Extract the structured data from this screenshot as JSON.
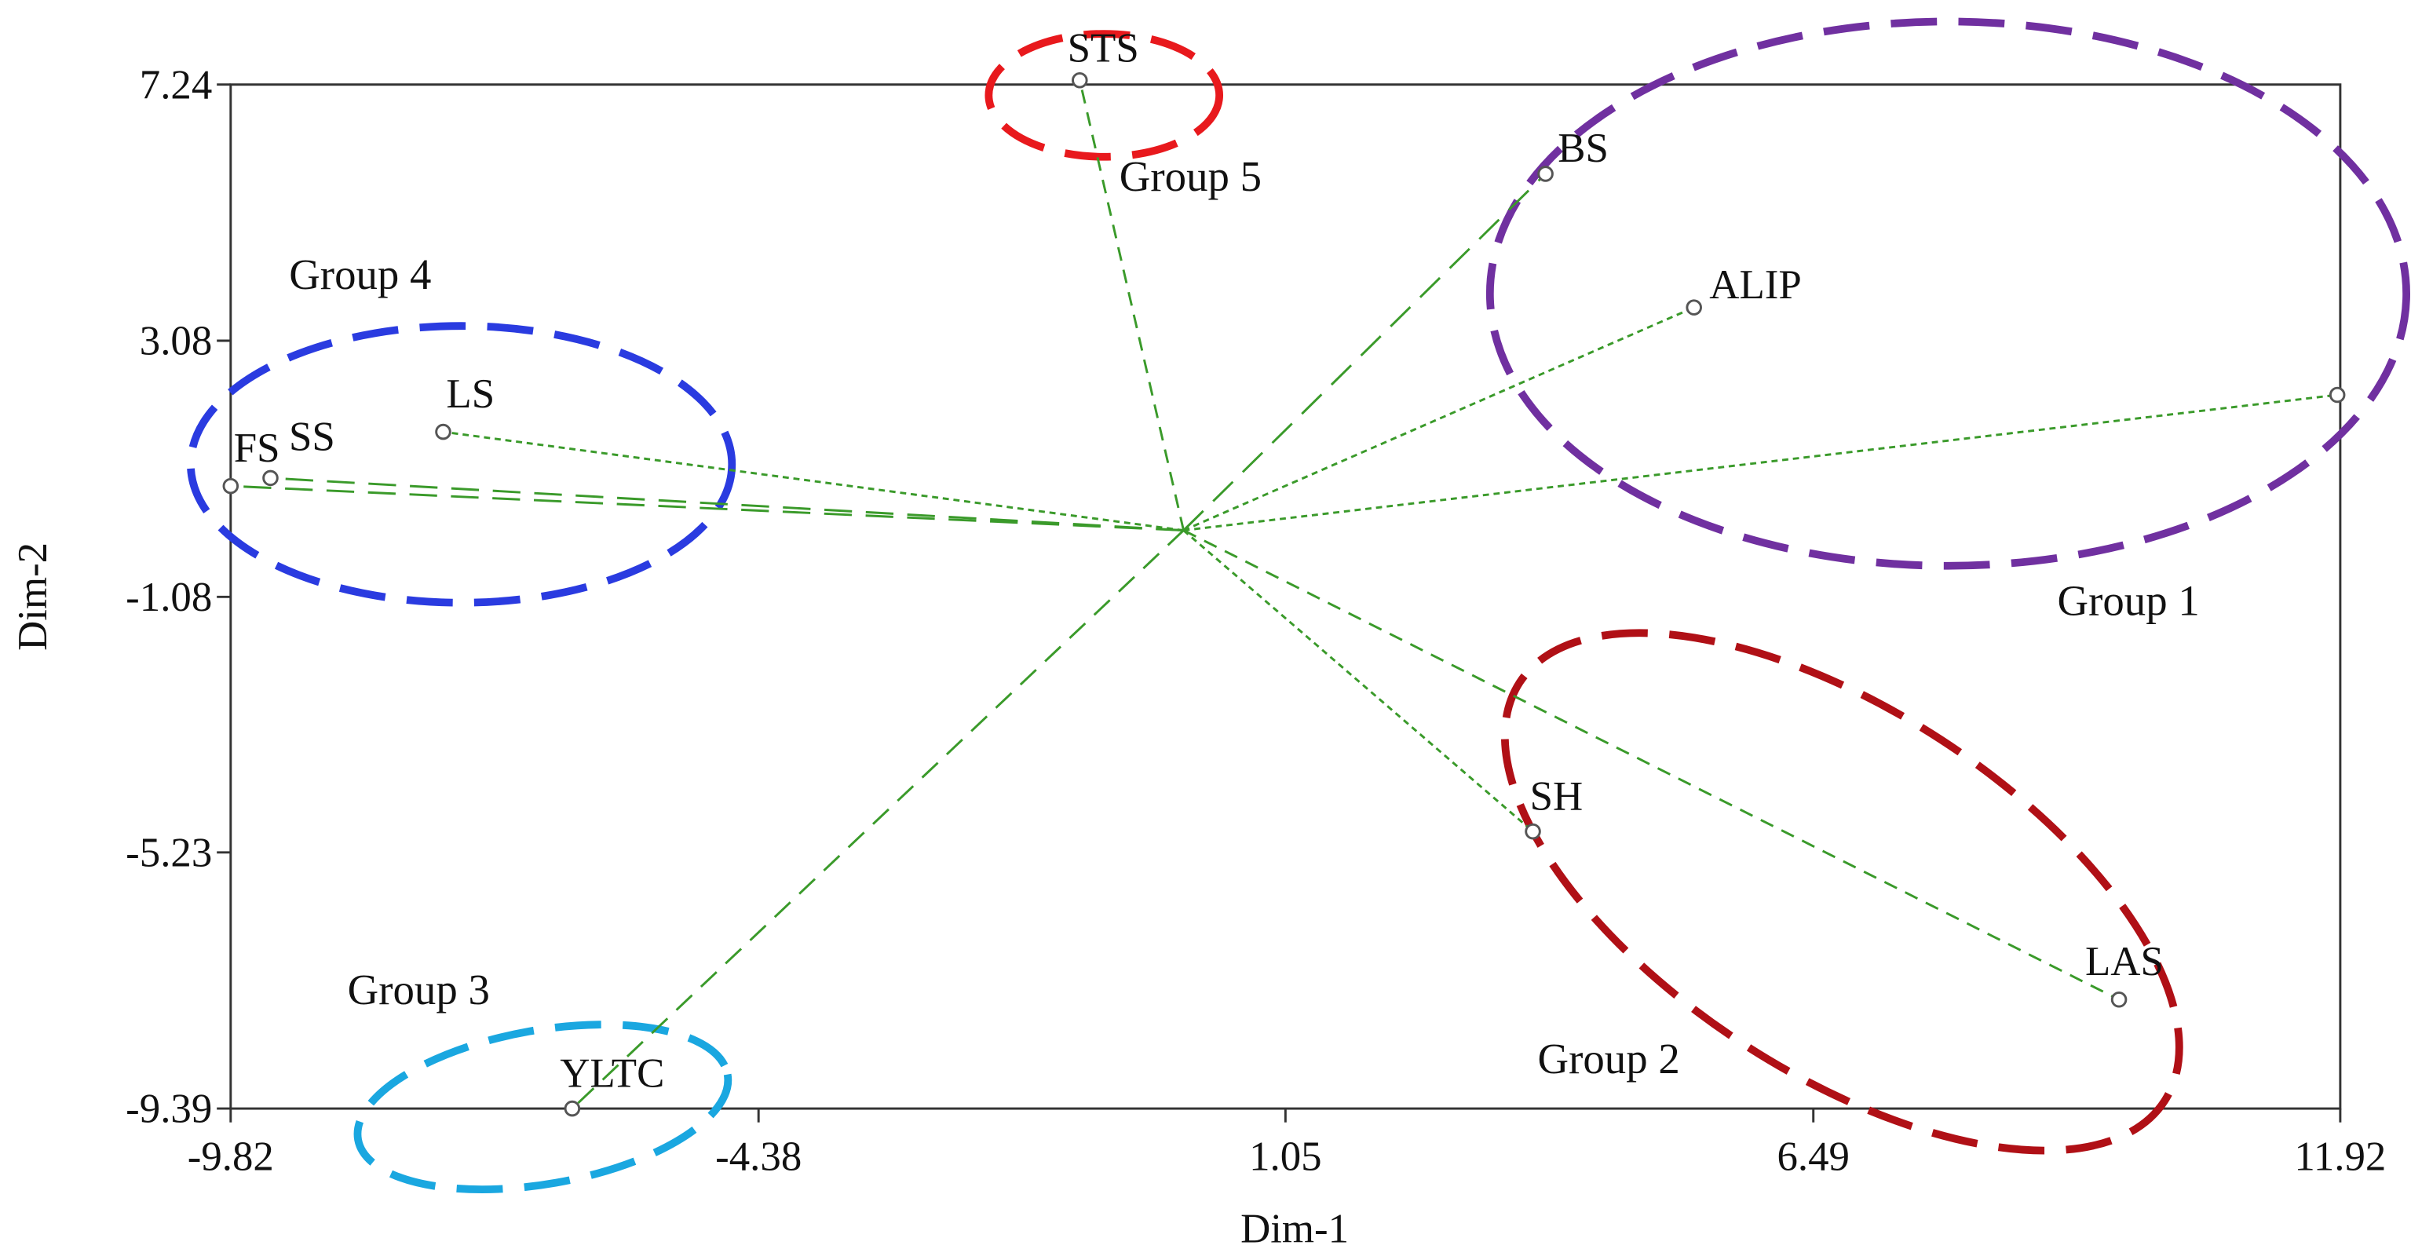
{
  "chart_data": {
    "type": "scatter",
    "xlabel": "Dim-1",
    "ylabel": "Dim-2",
    "xlim": [
      -9.82,
      11.92
    ],
    "xticks": [
      -9.82,
      -4.38,
      1.05,
      6.49,
      11.92
    ],
    "ylim": [
      -9.39,
      7.24
    ],
    "yticks": [
      7.24,
      3.08,
      -1.08,
      -5.23,
      -9.39
    ],
    "labels": [
      "STS",
      "BS",
      "ALIP",
      null,
      "LS",
      "SS",
      "FS",
      "SH",
      "LAS",
      "YLTC"
    ],
    "x": [
      -1.07,
      3.73,
      5.26,
      11.89,
      -7.63,
      -9.41,
      -9.82,
      3.6,
      9.64,
      -6.3
    ],
    "values": [
      7.31,
      5.79,
      3.62,
      2.2,
      1.6,
      0.85,
      0.72,
      -4.89,
      -7.62,
      -9.39
    ],
    "line_color": "#3a9a2a",
    "marker_color": "#555555",
    "annotations": [
      {
        "text": "Group 5",
        "color": "#e8191d"
      },
      {
        "text": "Group 1",
        "color": "#7030a0"
      },
      {
        "text": "Group 4",
        "color": "#2a3be0"
      },
      {
        "text": "Group 2",
        "color": "#b01016"
      },
      {
        "text": "Group 3",
        "color": "#1aa7e0"
      }
    ]
  }
}
